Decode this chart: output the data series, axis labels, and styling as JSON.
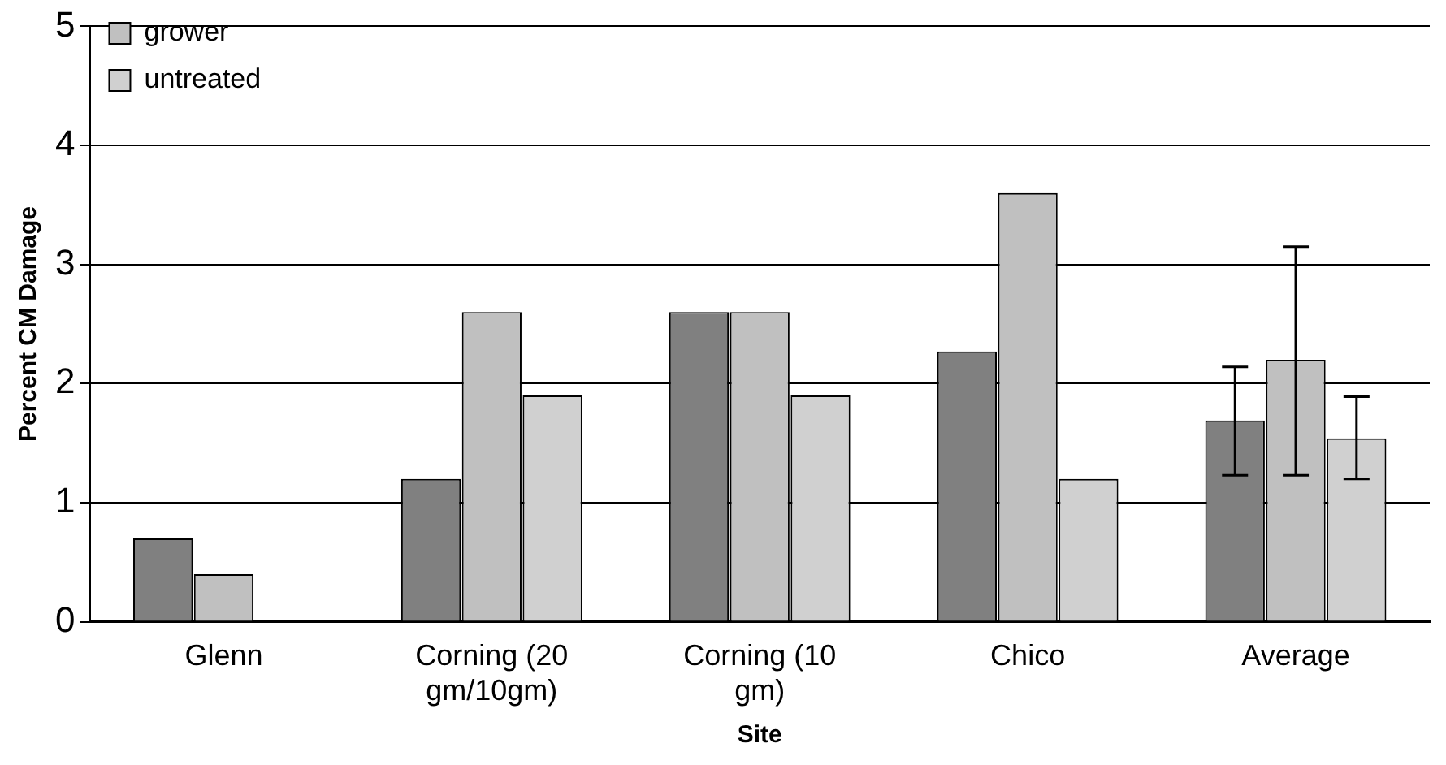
{
  "chart_data": {
    "type": "bar",
    "xlabel": "Site",
    "ylabel": "Percent CM Damage",
    "categories": [
      "Glenn",
      "Corning (20 gm/10gm)",
      "Corning (10 gm)",
      "Chico",
      "Average"
    ],
    "series": [
      {
        "color": "#808080",
        "values": [
          0.7,
          1.2,
          2.6,
          2.27,
          1.69
        ],
        "errors": [
          null,
          null,
          null,
          null,
          [
            1.23,
            2.14
          ]
        ]
      },
      {
        "name": "grower",
        "color": "#c0c0c0",
        "values": [
          0.4,
          2.6,
          2.6,
          3.6,
          2.2
        ],
        "errors": [
          null,
          null,
          null,
          null,
          [
            1.23,
            3.15
          ]
        ]
      },
      {
        "name": "untreated",
        "color": "#d0d0d0",
        "values": [
          0,
          1.9,
          1.9,
          1.2,
          1.54
        ],
        "errors": [
          null,
          null,
          null,
          null,
          [
            1.2,
            1.89
          ]
        ]
      }
    ],
    "ylim": [
      0,
      5
    ],
    "yticks": [
      0,
      1,
      2,
      3,
      4,
      5
    ],
    "grid": "y",
    "legend": "top left"
  }
}
